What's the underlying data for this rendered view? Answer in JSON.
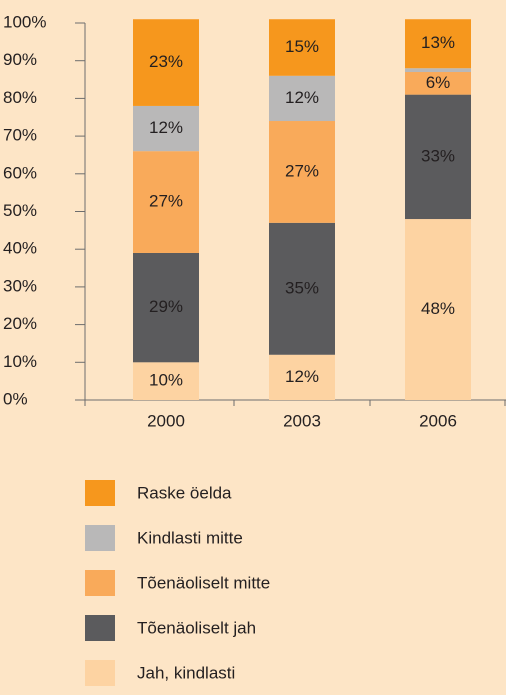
{
  "chart_data": {
    "type": "stacked_bar",
    "categories": [
      "2000",
      "2003",
      "2006"
    ],
    "series": [
      {
        "name": "Jah, kindlasti",
        "color": "#fdd3a2",
        "values": [
          10,
          12,
          48
        ],
        "value_labels": [
          "10%",
          "12%",
          "48%"
        ]
      },
      {
        "name": "Tõenäoliselt jah",
        "color": "#5b5b5d",
        "values": [
          29,
          35,
          33
        ],
        "value_labels": [
          "29%",
          "35%",
          "33%"
        ]
      },
      {
        "name": "Tõenäoliselt mitte",
        "color": "#f9aa5a",
        "values": [
          27,
          27,
          6
        ],
        "value_labels": [
          "27%",
          "27%",
          "6%"
        ]
      },
      {
        "name": "Kindlasti mitte",
        "color": "#b9b8b8",
        "values": [
          12,
          12,
          1
        ],
        "value_labels": [
          "12%",
          "12%",
          null
        ]
      },
      {
        "name": "Raske öelda",
        "color": "#f6971d",
        "values": [
          23,
          15,
          13
        ],
        "value_labels": [
          "23%",
          "15%",
          "13%"
        ]
      }
    ],
    "ylim": [
      0,
      100
    ],
    "yticks": [
      {
        "value": 0,
        "label": "0%"
      },
      {
        "value": 10,
        "label": "10%"
      },
      {
        "value": 20,
        "label": "20%"
      },
      {
        "value": 30,
        "label": "30%"
      },
      {
        "value": 40,
        "label": "40%"
      },
      {
        "value": 50,
        "label": "50%"
      },
      {
        "value": 60,
        "label": "60%"
      },
      {
        "value": 70,
        "label": "70%"
      },
      {
        "value": 80,
        "label": "80%"
      },
      {
        "value": 90,
        "label": "90%"
      },
      {
        "value": 100,
        "label": "100%"
      }
    ],
    "legend": "bottom"
  }
}
